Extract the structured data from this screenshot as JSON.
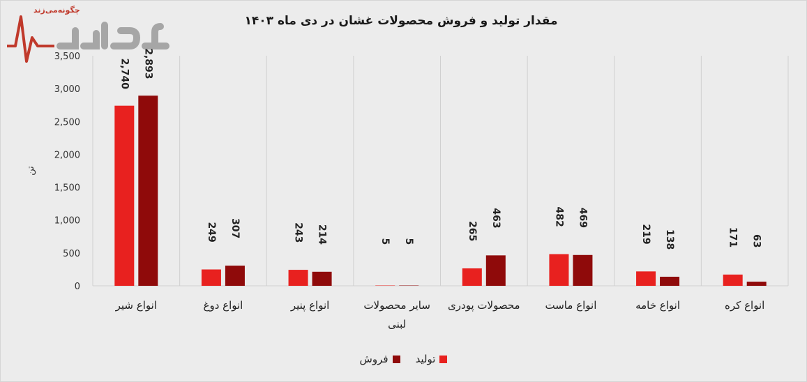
{
  "watermark": {
    "tagline": "چگونه‌می‌زند",
    "brand_colors": {
      "mark": "#c0392b",
      "text": "#9a9a9a"
    }
  },
  "chart_data": {
    "type": "bar",
    "title": "مقدار تولید و فروش محصولات غشان در دی ماه ۱۴۰۳",
    "ylabel": "تن",
    "xlabel": "",
    "ylim": [
      0,
      3500
    ],
    "yticks": [
      0,
      500,
      1000,
      1500,
      2000,
      2500,
      3000,
      3500
    ],
    "ytick_labels": [
      "0",
      "500",
      "1,000",
      "1,500",
      "2,000",
      "2,500",
      "3,000",
      "3,500"
    ],
    "categories": [
      "انواع شیر",
      "انواع دوغ",
      "انواع پنیر",
      "سایر محصولات لبنی",
      "محصولات پودری",
      "انواع ماست",
      "انواع خامه",
      "انواع کره"
    ],
    "series": [
      {
        "name": "تولید",
        "color": "#e8211f",
        "values": [
          2740,
          249,
          243,
          5,
          265,
          482,
          219,
          171
        ],
        "labels": [
          "2,740",
          "249",
          "243",
          "5",
          "265",
          "482",
          "219",
          "171"
        ]
      },
      {
        "name": "فروش",
        "color": "#8f0a0a",
        "values": [
          2893,
          307,
          214,
          5,
          463,
          469,
          138,
          63
        ],
        "labels": [
          "2,893",
          "307",
          "214",
          "5",
          "463",
          "469",
          "138",
          "63"
        ]
      }
    ],
    "grid": false,
    "legend_position": "bottom"
  }
}
